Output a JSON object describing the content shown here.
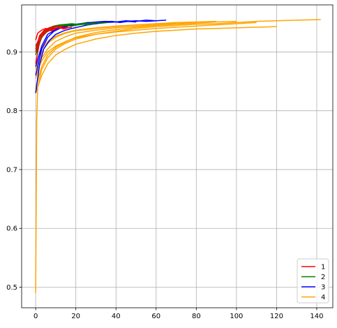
{
  "chart_data": {
    "type": "line",
    "title": "",
    "xlabel": "",
    "ylabel": "",
    "xlim": [
      -7,
      148
    ],
    "ylim": [
      0.465,
      0.98
    ],
    "xticks": [
      0,
      20,
      40,
      60,
      80,
      100,
      120,
      140
    ],
    "yticks": [
      0.5,
      0.6,
      0.7,
      0.8,
      0.9
    ],
    "grid": true,
    "legend_position": "lower-right",
    "legend": [
      {
        "label": "1",
        "color": "#ff0000"
      },
      {
        "label": "2",
        "color": "#008000"
      },
      {
        "label": "3",
        "color": "#0000ff"
      },
      {
        "label": "4",
        "color": "#ffa500"
      }
    ],
    "series": [
      {
        "group": "1",
        "color": "#ff0000",
        "x": [
          0,
          2,
          4,
          6,
          8,
          10,
          12,
          14
        ],
        "y": [
          0.905,
          0.928,
          0.936,
          0.94,
          0.942,
          0.944,
          0.943,
          0.944
        ]
      },
      {
        "group": "1",
        "color": "#ff0000",
        "x": [
          0,
          2,
          4,
          6,
          8,
          10,
          12,
          14,
          16,
          18
        ],
        "y": [
          0.88,
          0.918,
          0.93,
          0.935,
          0.938,
          0.94,
          0.941,
          0.939,
          0.941,
          0.942
        ]
      },
      {
        "group": "1",
        "color": "#ff0000",
        "x": [
          0,
          1,
          3,
          5,
          7,
          9,
          11
        ],
        "y": [
          0.92,
          0.932,
          0.937,
          0.94,
          0.938,
          0.941,
          0.94
        ]
      },
      {
        "group": "1",
        "color": "#ff0000",
        "x": [
          0,
          2,
          4,
          6,
          8,
          10,
          12,
          14,
          16
        ],
        "y": [
          0.9,
          0.925,
          0.933,
          0.938,
          0.936,
          0.94,
          0.942,
          0.94,
          0.943
        ]
      },
      {
        "group": "2",
        "color": "#008000",
        "x": [
          0,
          3,
          6,
          9,
          12,
          15,
          18,
          21,
          24,
          27,
          30
        ],
        "y": [
          0.9,
          0.928,
          0.938,
          0.942,
          0.945,
          0.946,
          0.947,
          0.946,
          0.948,
          0.947,
          0.949
        ]
      },
      {
        "group": "2",
        "color": "#008000",
        "x": [
          0,
          3,
          6,
          9,
          12,
          15,
          18,
          21,
          24,
          27,
          30,
          33,
          36
        ],
        "y": [
          0.91,
          0.932,
          0.94,
          0.944,
          0.946,
          0.947,
          0.948,
          0.947,
          0.949,
          0.948,
          0.95,
          0.949,
          0.95
        ]
      },
      {
        "group": "2",
        "color": "#008000",
        "x": [
          0,
          3,
          6,
          9,
          12,
          15,
          18,
          21,
          24,
          27
        ],
        "y": [
          0.895,
          0.925,
          0.936,
          0.94,
          0.943,
          0.945,
          0.944,
          0.946,
          0.947,
          0.946
        ]
      },
      {
        "group": "3",
        "color": "#0000ff",
        "x": [
          0,
          2,
          4,
          7,
          10,
          14,
          18,
          22,
          26,
          30,
          35,
          40,
          45,
          50,
          55,
          60
        ],
        "y": [
          0.83,
          0.88,
          0.905,
          0.92,
          0.93,
          0.936,
          0.94,
          0.943,
          0.946,
          0.948,
          0.95,
          0.951,
          0.952,
          0.953,
          0.952,
          0.953
        ]
      },
      {
        "group": "3",
        "color": "#0000ff",
        "x": [
          0,
          3,
          6,
          9,
          12,
          16,
          20,
          25,
          30,
          35,
          40,
          45,
          50,
          55,
          60,
          65
        ],
        "y": [
          0.86,
          0.905,
          0.925,
          0.935,
          0.94,
          0.944,
          0.947,
          0.949,
          0.951,
          0.952,
          0.951,
          0.953,
          0.952,
          0.954,
          0.953,
          0.954
        ]
      },
      {
        "group": "3",
        "color": "#0000ff",
        "x": [
          0,
          3,
          6,
          10,
          14,
          18,
          22,
          26,
          30,
          34,
          38,
          42,
          46,
          50
        ],
        "y": [
          0.875,
          0.91,
          0.93,
          0.938,
          0.943,
          0.946,
          0.948,
          0.95,
          0.949,
          0.951,
          0.952,
          0.95,
          0.952,
          0.951
        ]
      },
      {
        "group": "4",
        "color": "#ffa500",
        "x": [
          0,
          0.5,
          1,
          3,
          6,
          10,
          15,
          20,
          30,
          40,
          50,
          60,
          70,
          80,
          90,
          100,
          110,
          120,
          130,
          142
        ],
        "y": [
          0.49,
          0.78,
          0.84,
          0.87,
          0.89,
          0.905,
          0.915,
          0.922,
          0.93,
          0.935,
          0.94,
          0.943,
          0.945,
          0.947,
          0.948,
          0.95,
          0.952,
          0.953,
          0.954,
          0.955
        ]
      },
      {
        "group": "4",
        "color": "#ffa500",
        "x": [
          0,
          3,
          6,
          10,
          15,
          20,
          30,
          40,
          50,
          60,
          70,
          80,
          90,
          100,
          110,
          120
        ],
        "y": [
          0.83,
          0.86,
          0.88,
          0.895,
          0.905,
          0.913,
          0.922,
          0.928,
          0.932,
          0.935,
          0.937,
          0.939,
          0.94,
          0.941,
          0.942,
          0.943
        ]
      },
      {
        "group": "4",
        "color": "#ffa500",
        "x": [
          0,
          3,
          6,
          10,
          15,
          20,
          30,
          40,
          50,
          60,
          70,
          80,
          90,
          100,
          110
        ],
        "y": [
          0.86,
          0.885,
          0.9,
          0.91,
          0.918,
          0.924,
          0.93,
          0.934,
          0.937,
          0.94,
          0.942,
          0.944,
          0.946,
          0.948,
          0.95
        ]
      },
      {
        "group": "4",
        "color": "#ffa500",
        "x": [
          0,
          3,
          6,
          10,
          15,
          20,
          30,
          40,
          50,
          60,
          70,
          80,
          90,
          100
        ],
        "y": [
          0.84,
          0.875,
          0.895,
          0.908,
          0.917,
          0.925,
          0.933,
          0.938,
          0.942,
          0.945,
          0.947,
          0.949,
          0.951,
          0.952
        ]
      },
      {
        "group": "4",
        "color": "#ffa500",
        "x": [
          0,
          3,
          6,
          10,
          15,
          20,
          30,
          40,
          50,
          60,
          70,
          80,
          90
        ],
        "y": [
          0.87,
          0.9,
          0.915,
          0.925,
          0.932,
          0.936,
          0.94,
          0.943,
          0.946,
          0.948,
          0.95,
          0.951,
          0.952
        ]
      },
      {
        "group": "4",
        "color": "#ffa500",
        "x": [
          0,
          3,
          6,
          10,
          15,
          20,
          30,
          40,
          50,
          60,
          70,
          80
        ],
        "y": [
          0.855,
          0.89,
          0.905,
          0.918,
          0.926,
          0.932,
          0.937,
          0.941,
          0.944,
          0.946,
          0.948,
          0.95
        ]
      },
      {
        "group": "4",
        "color": "#ffa500",
        "x": [
          0,
          3,
          6,
          10,
          15,
          20,
          30,
          40,
          50,
          60,
          70
        ],
        "y": [
          0.88,
          0.905,
          0.918,
          0.927,
          0.933,
          0.937,
          0.941,
          0.944,
          0.946,
          0.948,
          0.949
        ]
      }
    ]
  }
}
